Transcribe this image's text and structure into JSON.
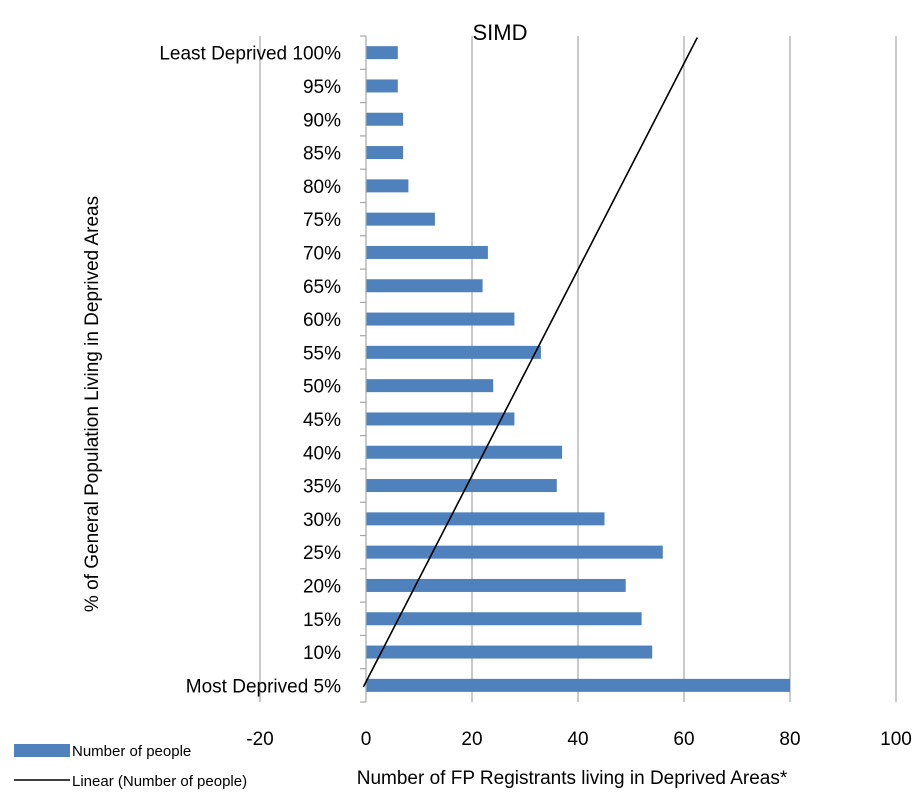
{
  "chart_data": {
    "type": "bar",
    "orientation": "horizontal",
    "title": "SIMD",
    "xlabel": "Number of FP Registrants living in Deprived Areas*",
    "ylabel": "% of General Population Living in Deprived Areas",
    "categories": [
      "Most Deprived 5%",
      "10%",
      "15%",
      "20%",
      "25%",
      "30%",
      "35%",
      "40%",
      "45%",
      "50%",
      "55%",
      "60%",
      "65%",
      "70%",
      "75%",
      "80%",
      "85%",
      "90%",
      "95%",
      "Least Deprived 100%"
    ],
    "series": [
      {
        "name": "Number of people",
        "values": [
          80,
          54,
          52,
          49,
          56,
          45,
          36,
          37,
          28,
          24,
          33,
          28,
          22,
          23,
          13,
          8,
          7,
          7,
          6,
          6
        ]
      }
    ],
    "trendline": {
      "name": "Linear (Number of people)",
      "type": "linear",
      "start_value": -0.5,
      "end_value": 62.5
    },
    "xlim": [
      -20,
      100
    ],
    "xticks": [
      "-20",
      "0",
      "20",
      "40",
      "60",
      "80",
      "100"
    ],
    "grid": "vertical",
    "legend_position": "bottom-left",
    "colors": {
      "bar": "#4f81bd",
      "trendline": "#000000",
      "grid": "#a6a6a6"
    }
  }
}
